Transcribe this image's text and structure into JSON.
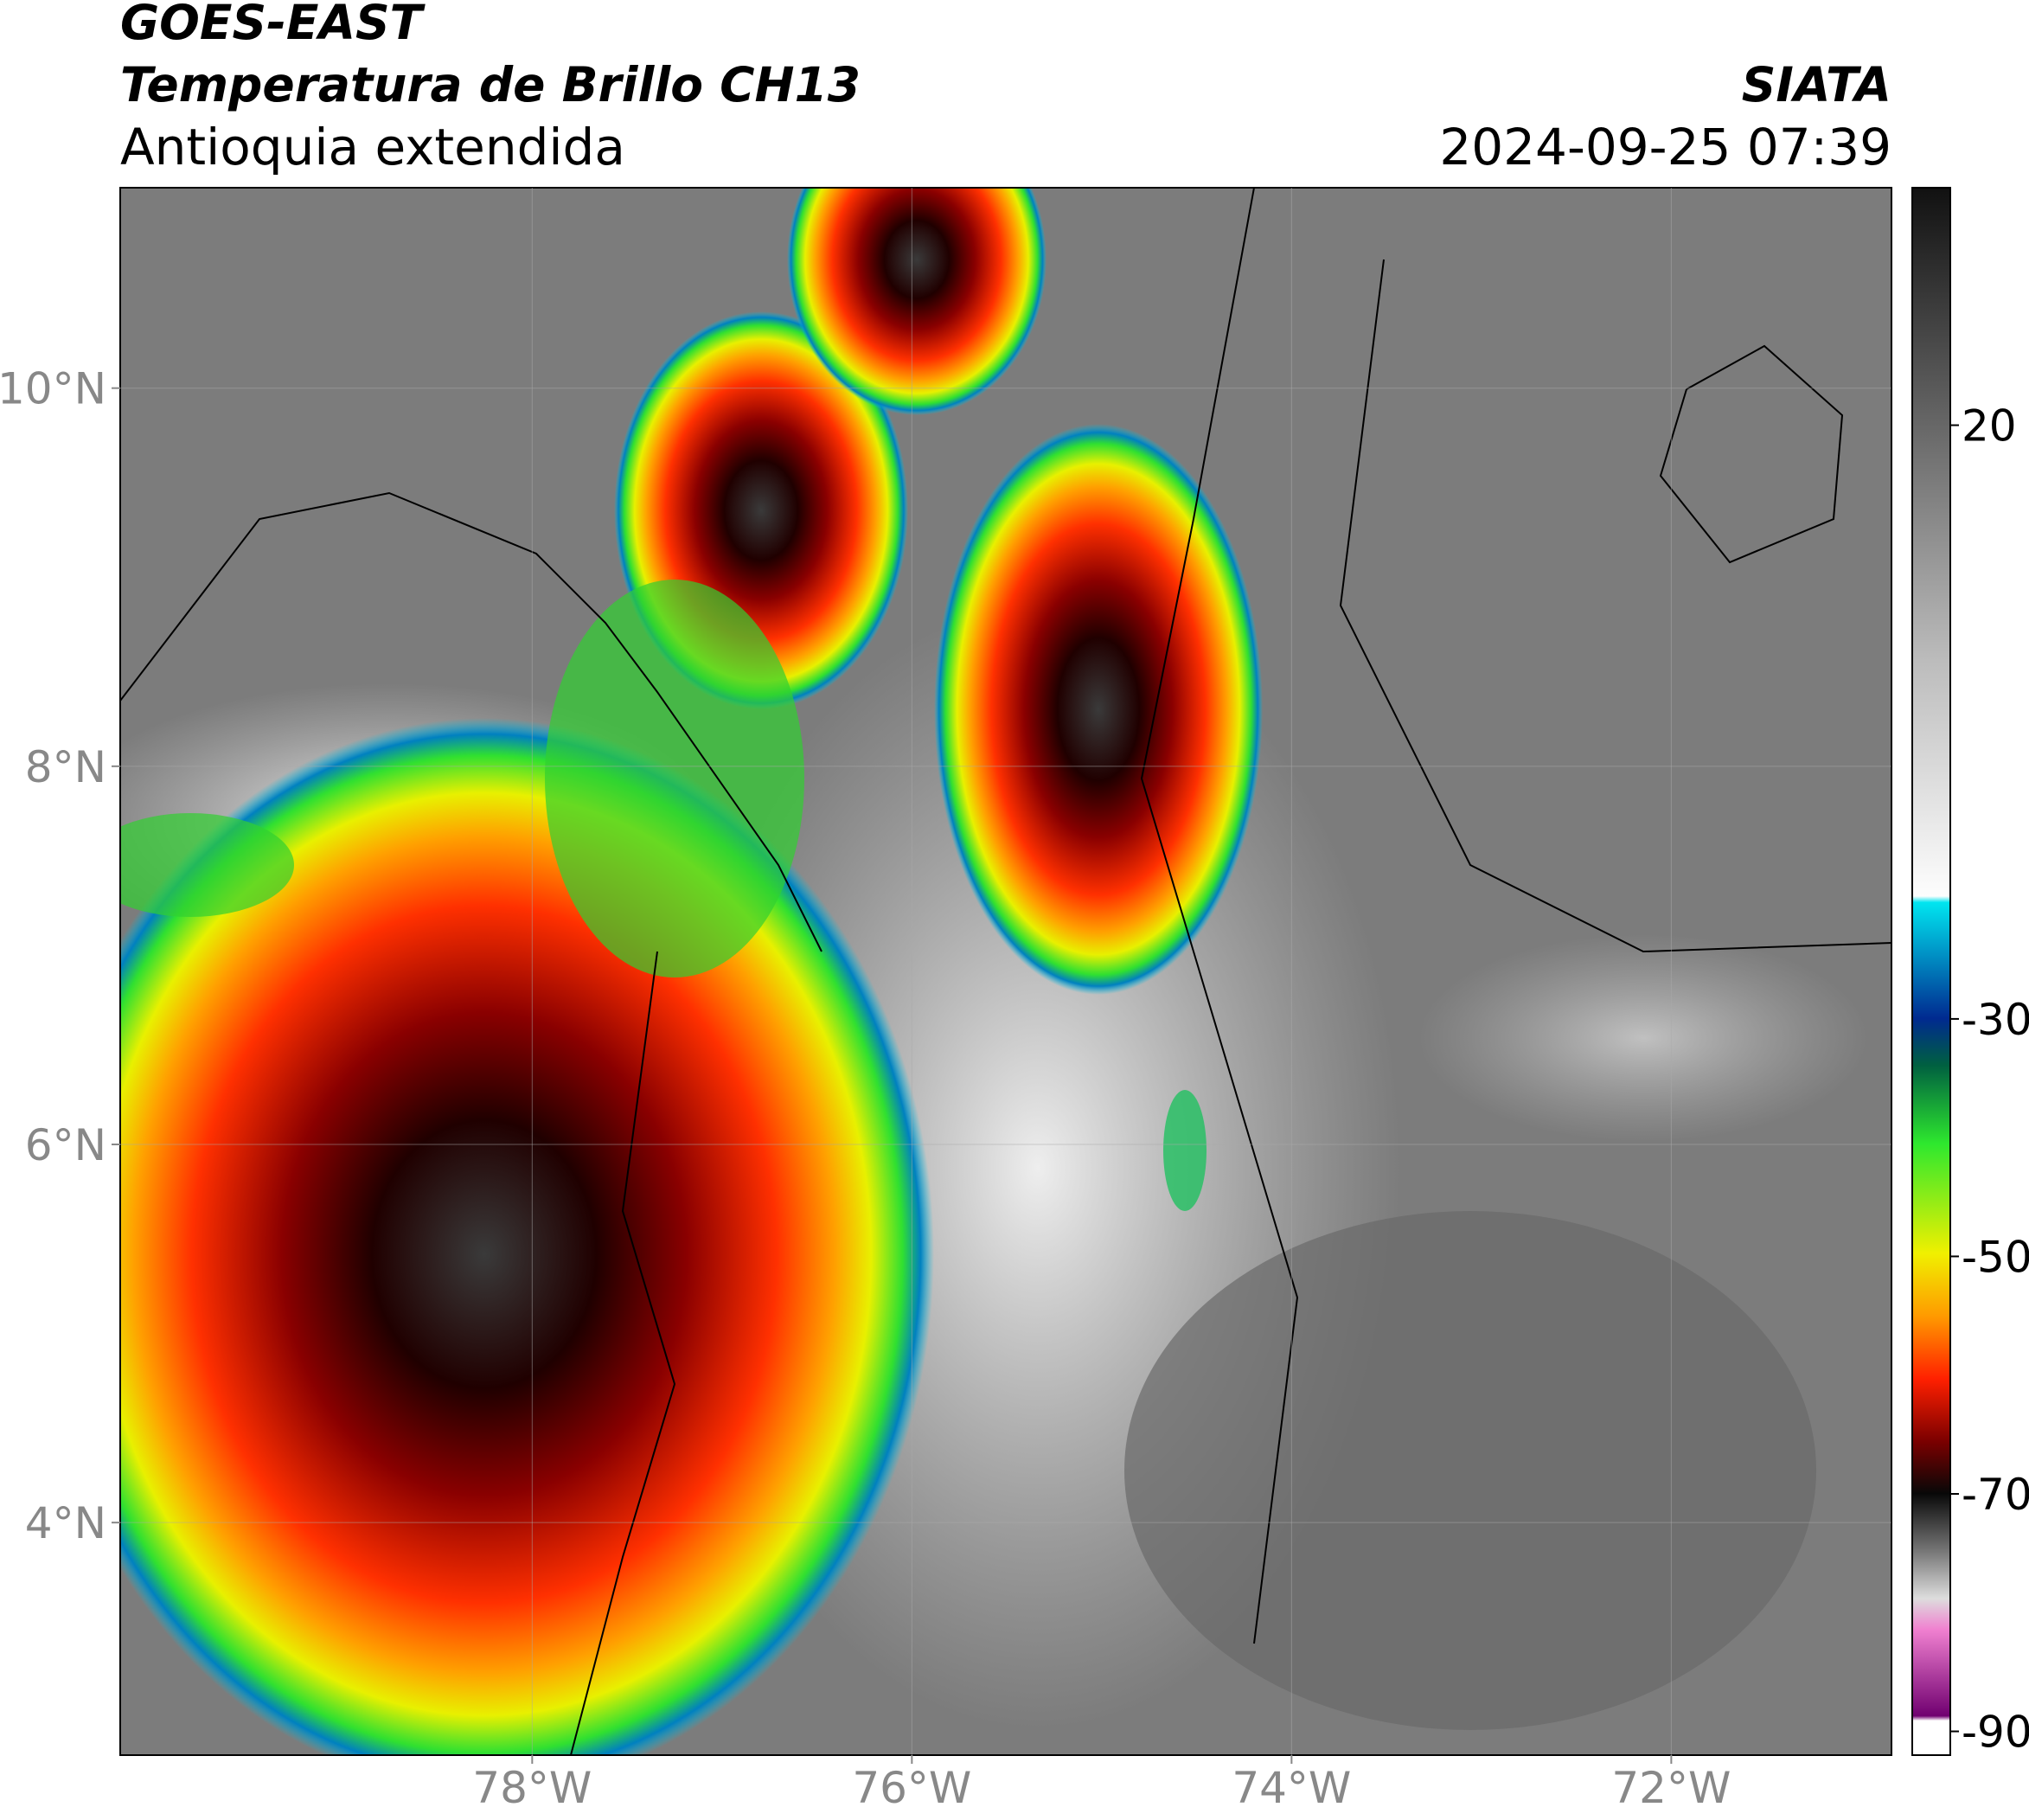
{
  "map": {
    "title": "GOES-EAST",
    "subtitle": "Temperatura de Brillo CH13",
    "region": "Antioquia extendida",
    "source": "SIATA",
    "datetime": "2024-09-25 07:39",
    "xlim": [
      -80.17,
      -70.84
    ],
    "ylim": [
      2.77,
      11.06
    ],
    "xticks": [
      {
        "value": -78,
        "label": "78°W"
      },
      {
        "value": -76,
        "label": "76°W"
      },
      {
        "value": -74,
        "label": "74°W"
      },
      {
        "value": -72,
        "label": "72°W"
      }
    ],
    "yticks": [
      {
        "value": 4,
        "label": "4°N"
      },
      {
        "value": 6,
        "label": "6°N"
      },
      {
        "value": 8,
        "label": "8°N"
      },
      {
        "value": 10,
        "label": "10°N"
      }
    ]
  },
  "colorbar": {
    "lim": [
      -92,
      40
    ],
    "ticks": [
      20,
      -30,
      -50,
      -70,
      -90
    ]
  }
}
